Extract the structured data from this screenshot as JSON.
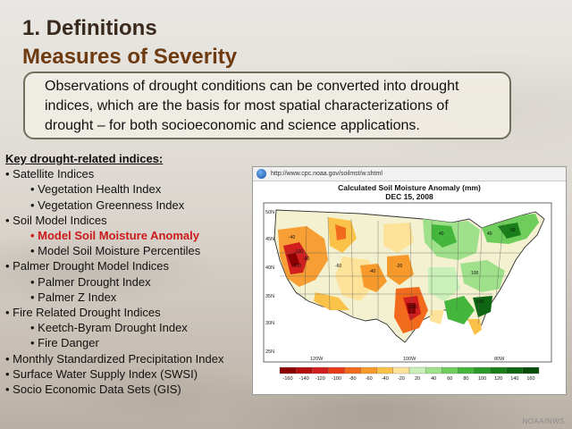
{
  "slide": {
    "title_line1": "1. Definitions",
    "title_line2": "Measures of Severity",
    "callout": "Observations of drought conditions can be converted into drought indices, which are the basis for most spatial characterizations of drought – for both socioeconomic and science applications.",
    "list_header": "Key drought-related indices:",
    "indices": [
      {
        "text": "• Satellite Indices",
        "level": 1
      },
      {
        "text": "• Vegetation Health Index",
        "level": 2
      },
      {
        "text": "• Vegetation Greenness Index",
        "level": 2
      },
      {
        "text": "• Soil Model Indices",
        "level": 1
      },
      {
        "text": "• Model Soil Moisture Anomaly",
        "level": 2,
        "highlight": true
      },
      {
        "text": "• Model Soil Moisture Percentiles",
        "level": 2
      },
      {
        "text": "• Palmer Drought Model Indices",
        "level": 1
      },
      {
        "text": "• Palmer Drought Index",
        "level": 2
      },
      {
        "text": "• Palmer Z Index",
        "level": 2
      },
      {
        "text": "• Fire Related Drought Indices",
        "level": 1
      },
      {
        "text": "• Keetch-Byram Drought Index",
        "level": 2
      },
      {
        "text": "• Fire Danger",
        "level": 2
      },
      {
        "text": "• Monthly Standardized Precipitation Index",
        "level": 1
      },
      {
        "text": "• Surface Water Supply Index (SWSI)",
        "level": 1
      },
      {
        "text": "• Socio Economic Data Sets (GIS)",
        "level": 1
      }
    ],
    "credit": "NOAA/NWS"
  },
  "map": {
    "url": "http://www.cpc.noaa.gov/soilmst/w.shtml",
    "title": "Calculated Soil Moisture Anomaly (mm)",
    "date": "DEC 15, 2008",
    "lat_labels": [
      "50N",
      "45N",
      "40N",
      "35N",
      "30N",
      "25N"
    ],
    "lon_labels": [
      "120W",
      "100W",
      "80W"
    ],
    "colorbar_labels": [
      "-160",
      "-140",
      "-120",
      "-100",
      "-80",
      "-60",
      "-40",
      "-20",
      "20",
      "40",
      "60",
      "80",
      "100",
      "120",
      "140",
      "160"
    ],
    "colorbar_colors": [
      "#8b0000",
      "#b30d0d",
      "#d11f1f",
      "#e83a1a",
      "#f26b1d",
      "#f79a2b",
      "#fbc24a",
      "#fde39a",
      "#c9f0b8",
      "#9fe08a",
      "#6fcd5c",
      "#44b63c",
      "#2a9b2a",
      "#1a7f1a",
      "#0f6612",
      "#074d0a"
    ],
    "contour_labels": [
      "-40",
      "-80",
      "-100",
      "-120",
      "-60",
      "-40",
      "40",
      "60",
      "100",
      "-100",
      "100",
      "40",
      "-20"
    ]
  }
}
